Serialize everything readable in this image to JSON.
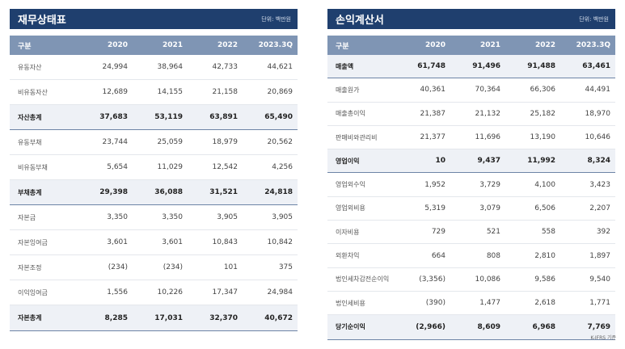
{
  "balance_sheet": {
    "title": "재무상태표",
    "unit": "단위: 백만원",
    "columns": [
      "구분",
      "2020",
      "2021",
      "2022",
      "2023.3Q"
    ],
    "rows": [
      {
        "label": "유동자산",
        "values": [
          "24,994",
          "38,964",
          "42,733",
          "44,621"
        ],
        "bold": false
      },
      {
        "label": "비유동자산",
        "values": [
          "12,689",
          "14,155",
          "21,158",
          "20,869"
        ],
        "bold": false
      },
      {
        "label": "자산총계",
        "values": [
          "37,683",
          "53,119",
          "63,891",
          "65,490"
        ],
        "bold": true
      },
      {
        "label": "유동부채",
        "values": [
          "23,744",
          "25,059",
          "18,979",
          "20,562"
        ],
        "bold": false
      },
      {
        "label": "비유동부채",
        "values": [
          "5,654",
          "11,029",
          "12,542",
          "4,256"
        ],
        "bold": false
      },
      {
        "label": "부채총계",
        "values": [
          "29,398",
          "36,088",
          "31,521",
          "24,818"
        ],
        "bold": true
      },
      {
        "label": "자본금",
        "values": [
          "3,350",
          "3,350",
          "3,905",
          "3,905"
        ],
        "bold": false
      },
      {
        "label": "자본잉여금",
        "values": [
          "3,601",
          "3,601",
          "10,843",
          "10,842"
        ],
        "bold": false
      },
      {
        "label": "자본조정",
        "values": [
          "(234)",
          "(234)",
          "101",
          "375"
        ],
        "bold": false
      },
      {
        "label": "이익잉여금",
        "values": [
          "1,556",
          "10,226",
          "17,347",
          "24,984"
        ],
        "bold": false
      },
      {
        "label": "자본총계",
        "values": [
          "8,285",
          "17,031",
          "32,370",
          "40,672"
        ],
        "bold": true
      }
    ]
  },
  "income_statement": {
    "title": "손익계산서",
    "unit": "단위: 백만원",
    "columns": [
      "구분",
      "2020",
      "2021",
      "2022",
      "2023.3Q"
    ],
    "rows": [
      {
        "label": "매출액",
        "values": [
          "61,748",
          "91,496",
          "91,488",
          "63,461"
        ],
        "bold": true
      },
      {
        "label": "매출원가",
        "values": [
          "40,361",
          "70,364",
          "66,306",
          "44,491"
        ],
        "bold": false
      },
      {
        "label": "매출총이익",
        "values": [
          "21,387",
          "21,132",
          "25,182",
          "18,970"
        ],
        "bold": false
      },
      {
        "label": "판매비와관리비",
        "values": [
          "21,377",
          "11,696",
          "13,190",
          "10,646"
        ],
        "bold": false
      },
      {
        "label": "영업이익",
        "values": [
          "10",
          "9,437",
          "11,992",
          "8,324"
        ],
        "bold": true
      },
      {
        "label": "영업외수익",
        "values": [
          "1,952",
          "3,729",
          "4,100",
          "3,423"
        ],
        "bold": false
      },
      {
        "label": "영업외비용",
        "values": [
          "5,319",
          "3,079",
          "6,506",
          "2,207"
        ],
        "bold": false
      },
      {
        "label": "이자비용",
        "values": [
          "729",
          "521",
          "558",
          "392"
        ],
        "bold": false
      },
      {
        "label": "외환차익",
        "values": [
          "664",
          "808",
          "2,810",
          "1,897"
        ],
        "bold": false
      },
      {
        "label": "법인세차감전순이익",
        "values": [
          "(3,356)",
          "10,086",
          "9,586",
          "9,540"
        ],
        "bold": false
      },
      {
        "label": "법인세비용",
        "values": [
          "(390)",
          "1,477",
          "2,618",
          "1,771"
        ],
        "bold": false
      },
      {
        "label": "당기순이익",
        "values": [
          "(2,966)",
          "8,609",
          "6,968",
          "7,769"
        ],
        "bold": true
      }
    ]
  },
  "footnote": "K-IFRS 기준"
}
